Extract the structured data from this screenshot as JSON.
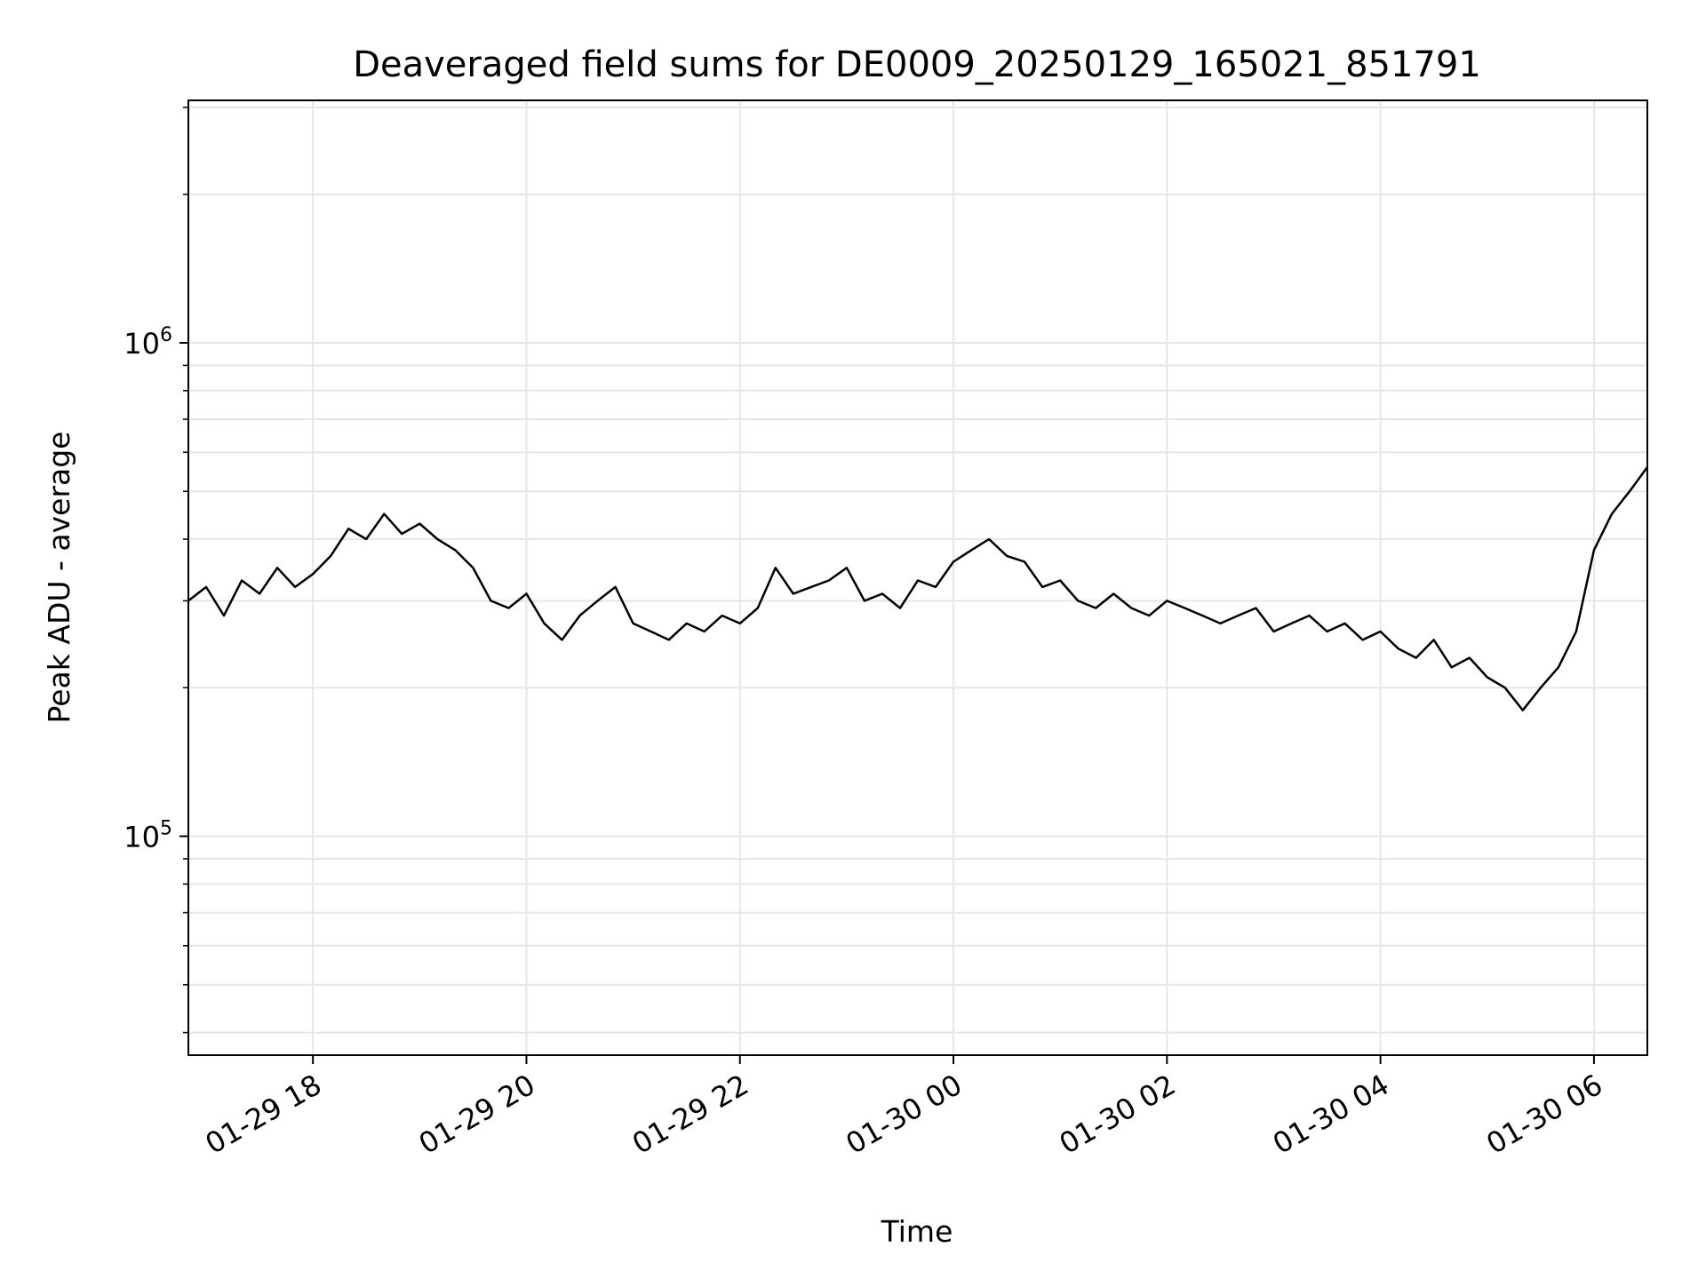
{
  "chart_data": {
    "type": "line",
    "title": "Deaveraged field sums for DE0009_20250129_165021_851791",
    "xlabel": "Time",
    "ylabel": "Peak ADU - average",
    "y_scale": "log",
    "grid": true,
    "line_color": "#000000",
    "grid_color": "#e6e6e6",
    "x_range": [
      "2025-01-29 16:50",
      "2025-01-30 06:30"
    ],
    "ylim": [
      36000,
      3100000
    ],
    "x_ticks": [
      {
        "time": "2025-01-29 18:00",
        "label": "01-29 18"
      },
      {
        "time": "2025-01-29 20:00",
        "label": "01-29 20"
      },
      {
        "time": "2025-01-29 22:00",
        "label": "01-29 22"
      },
      {
        "time": "2025-01-30 00:00",
        "label": "01-30 00"
      },
      {
        "time": "2025-01-30 02:00",
        "label": "01-30 02"
      },
      {
        "time": "2025-01-30 04:00",
        "label": "01-30 04"
      },
      {
        "time": "2025-01-30 06:00",
        "label": "01-30 06"
      }
    ],
    "y_ticks": [
      {
        "value": 100000,
        "base": "10",
        "exp": "5"
      },
      {
        "value": 1000000,
        "base": "10",
        "exp": "6"
      }
    ],
    "series": [
      {
        "x": [
          "2025-01-29 16:50",
          "2025-01-29 17:00",
          "2025-01-29 17:10",
          "2025-01-29 17:20",
          "2025-01-29 17:30",
          "2025-01-29 17:40",
          "2025-01-29 17:50",
          "2025-01-29 18:00",
          "2025-01-29 18:10",
          "2025-01-29 18:20",
          "2025-01-29 18:30",
          "2025-01-29 18:40",
          "2025-01-29 18:50",
          "2025-01-29 19:00",
          "2025-01-29 19:10",
          "2025-01-29 19:20",
          "2025-01-29 19:30",
          "2025-01-29 19:40",
          "2025-01-29 19:50",
          "2025-01-29 20:00",
          "2025-01-29 20:10",
          "2025-01-29 20:20",
          "2025-01-29 20:30",
          "2025-01-29 20:40",
          "2025-01-29 20:50",
          "2025-01-29 21:00",
          "2025-01-29 21:10",
          "2025-01-29 21:20",
          "2025-01-29 21:30",
          "2025-01-29 21:40",
          "2025-01-29 21:50",
          "2025-01-29 22:00",
          "2025-01-29 22:10",
          "2025-01-29 22:20",
          "2025-01-29 22:30",
          "2025-01-29 22:40",
          "2025-01-29 22:50",
          "2025-01-29 23:00",
          "2025-01-29 23:10",
          "2025-01-29 23:20",
          "2025-01-29 23:30",
          "2025-01-29 23:40",
          "2025-01-29 23:50",
          "2025-01-30 00:00",
          "2025-01-30 00:10",
          "2025-01-30 00:20",
          "2025-01-30 00:30",
          "2025-01-30 00:40",
          "2025-01-30 00:50",
          "2025-01-30 01:00",
          "2025-01-30 01:10",
          "2025-01-30 01:20",
          "2025-01-30 01:30",
          "2025-01-30 01:40",
          "2025-01-30 01:50",
          "2025-01-30 02:00",
          "2025-01-30 02:10",
          "2025-01-30 02:20",
          "2025-01-30 02:30",
          "2025-01-30 02:40",
          "2025-01-30 02:50",
          "2025-01-30 03:00",
          "2025-01-30 03:10",
          "2025-01-30 03:20",
          "2025-01-30 03:30",
          "2025-01-30 03:40",
          "2025-01-30 03:50",
          "2025-01-30 04:00",
          "2025-01-30 04:10",
          "2025-01-30 04:20",
          "2025-01-30 04:30",
          "2025-01-30 04:40",
          "2025-01-30 04:50",
          "2025-01-30 05:00",
          "2025-01-30 05:10",
          "2025-01-30 05:20",
          "2025-01-30 05:30",
          "2025-01-30 05:40",
          "2025-01-30 05:50",
          "2025-01-30 06:00",
          "2025-01-30 06:10",
          "2025-01-30 06:20",
          "2025-01-30 06:30"
        ],
        "y": [
          300000,
          320000,
          280000,
          330000,
          310000,
          350000,
          320000,
          340000,
          370000,
          420000,
          400000,
          450000,
          410000,
          430000,
          400000,
          380000,
          350000,
          300000,
          290000,
          310000,
          270000,
          250000,
          280000,
          300000,
          320000,
          270000,
          260000,
          250000,
          270000,
          260000,
          280000,
          270000,
          290000,
          350000,
          310000,
          320000,
          330000,
          350000,
          300000,
          310000,
          290000,
          330000,
          320000,
          360000,
          380000,
          400000,
          370000,
          360000,
          320000,
          330000,
          300000,
          290000,
          310000,
          290000,
          280000,
          300000,
          290000,
          280000,
          270000,
          280000,
          290000,
          260000,
          270000,
          280000,
          260000,
          270000,
          250000,
          260000,
          240000,
          230000,
          250000,
          220000,
          230000,
          210000,
          200000,
          180000,
          200000,
          220000,
          260000,
          380000,
          450000,
          500000,
          560000
        ]
      }
    ]
  }
}
